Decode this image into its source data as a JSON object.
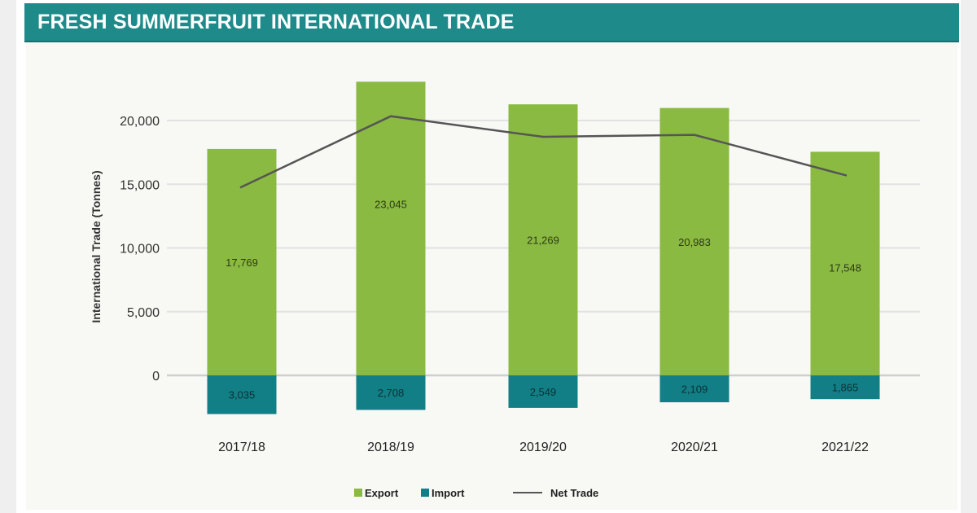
{
  "header": {
    "title": "FRESH SUMMERFRUIT INTERNATIONAL TRADE"
  },
  "colors": {
    "title_bg": "#1f8a8a",
    "export": "#8aba42",
    "import": "#127f86",
    "net_trade": "#555555",
    "grid": "#e2e2e2"
  },
  "chart_data": {
    "type": "bar",
    "title": "FRESH SUMMERFRUIT INTERNATIONAL TRADE",
    "xlabel": "",
    "ylabel": "International Trade (Tonnes)",
    "categories": [
      "2017/18",
      "2018/19",
      "2019/20",
      "2020/21",
      "2021/22"
    ],
    "series": [
      {
        "name": "Export",
        "type": "bar",
        "values": [
          17769,
          23045,
          21269,
          20983,
          17548
        ],
        "labels": [
          "17,769",
          "23,045",
          "21,269",
          "20,983",
          "17,548"
        ]
      },
      {
        "name": "Import",
        "type": "bar",
        "values": [
          -3035,
          -2708,
          -2549,
          -2109,
          -1865
        ],
        "labels": [
          "3,035",
          "2,708",
          "2,549",
          "2,109",
          "1,865"
        ]
      },
      {
        "name": "Net Trade",
        "type": "line",
        "values": [
          14734,
          20337,
          18720,
          18874,
          15683
        ]
      }
    ],
    "yticks": [
      "0",
      "5,000",
      "10,000",
      "15,000",
      "20,000"
    ],
    "ytick_values": [
      0,
      5000,
      10000,
      15000,
      20000
    ],
    "ylim": [
      -3500,
      23500
    ],
    "grid": true,
    "legend_position": "bottom",
    "legend": [
      "Export",
      "Import",
      "Net Trade"
    ]
  }
}
